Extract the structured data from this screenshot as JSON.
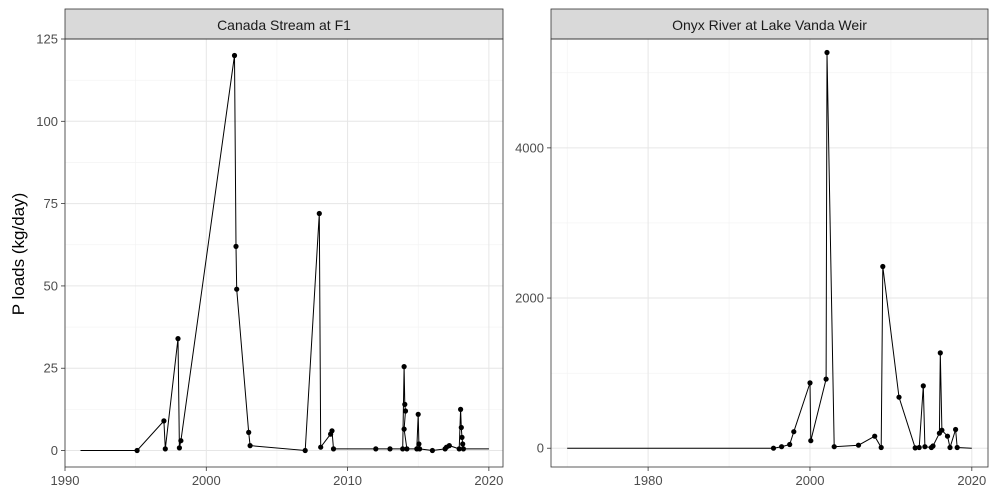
{
  "chart_data": {
    "type": "line",
    "ylabel": "P loads (kg/day)",
    "panels": [
      {
        "title": "Canada Stream at F1",
        "xlim": [
          1990,
          2021
        ],
        "ylim": [
          -5,
          125
        ],
        "x_ticks": [
          1990,
          2000,
          2010,
          2020
        ],
        "y_ticks": [
          0,
          25,
          50,
          75,
          100,
          125
        ],
        "line_start": [
          1991.1,
          0
        ],
        "line_end": [
          2020.0,
          0.5
        ],
        "points": [
          [
            1995.1,
            0
          ],
          [
            1997.0,
            9
          ],
          [
            1997.1,
            0.5
          ],
          [
            1998.0,
            34
          ],
          [
            1998.1,
            0.8
          ],
          [
            1998.2,
            3
          ],
          [
            2002.0,
            120
          ],
          [
            2002.1,
            62
          ],
          [
            2002.15,
            49
          ],
          [
            2003.0,
            5.5
          ],
          [
            2003.1,
            1.5
          ],
          [
            2007.0,
            0
          ],
          [
            2008.0,
            72
          ],
          [
            2008.1,
            1
          ],
          [
            2008.8,
            5
          ],
          [
            2008.9,
            6
          ],
          [
            2009.0,
            0.5
          ],
          [
            2012.0,
            0.5
          ],
          [
            2013.0,
            0.5
          ],
          [
            2013.9,
            0.5
          ],
          [
            2014.0,
            25.5
          ],
          [
            2014.05,
            14
          ],
          [
            2014.1,
            12
          ],
          [
            2014.0,
            6.5
          ],
          [
            2014.2,
            0.5
          ],
          [
            2014.9,
            0.5
          ],
          [
            2015.0,
            11
          ],
          [
            2015.05,
            2
          ],
          [
            2015.1,
            0.5
          ],
          [
            2016.0,
            0
          ],
          [
            2016.9,
            0.5
          ],
          [
            2017.0,
            1
          ],
          [
            2017.2,
            1.5
          ],
          [
            2017.9,
            0.5
          ],
          [
            2018.0,
            12.5
          ],
          [
            2018.05,
            7
          ],
          [
            2018.1,
            4
          ],
          [
            2018.15,
            2
          ],
          [
            2018.2,
            0.5
          ]
        ]
      },
      {
        "title": "Onyx River at Lake Vanda Weir",
        "xlim": [
          1968,
          2022
        ],
        "ylim": [
          -250,
          5450
        ],
        "x_ticks": [
          1980,
          2000,
          2020
        ],
        "y_ticks": [
          0,
          2000,
          4000
        ],
        "line_start": [
          1970.0,
          0
        ],
        "line_end": [
          2020.0,
          0
        ],
        "points": [
          [
            1995.5,
            0
          ],
          [
            1996.5,
            20
          ],
          [
            1997.5,
            50
          ],
          [
            1998.0,
            220
          ],
          [
            2000.0,
            870
          ],
          [
            2000.1,
            100
          ],
          [
            2002.0,
            920
          ],
          [
            2002.1,
            5270
          ],
          [
            2003.0,
            20
          ],
          [
            2006.0,
            40
          ],
          [
            2008.0,
            160
          ],
          [
            2008.8,
            10
          ],
          [
            2009.0,
            2420
          ],
          [
            2011.0,
            680
          ],
          [
            2013.0,
            5
          ],
          [
            2013.5,
            10
          ],
          [
            2014.0,
            830
          ],
          [
            2014.2,
            20
          ],
          [
            2015.0,
            10
          ],
          [
            2015.2,
            30
          ],
          [
            2016.0,
            200
          ],
          [
            2016.1,
            1270
          ],
          [
            2016.3,
            240
          ],
          [
            2017.0,
            160
          ],
          [
            2017.3,
            10
          ],
          [
            2018.0,
            250
          ],
          [
            2018.2,
            10
          ]
        ]
      }
    ]
  }
}
